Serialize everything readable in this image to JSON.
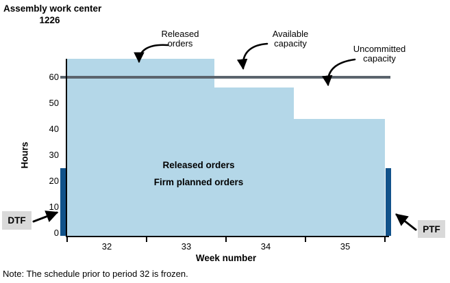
{
  "title": {
    "line1": "Assembly work center",
    "line2": "1226"
  },
  "note": "Note: The schedule prior to period 32 is frozen.",
  "fence_labels": {
    "dtf": "DTF",
    "ptf": "PTF"
  },
  "annotations": {
    "released": {
      "line1": "Released",
      "line2": "orders"
    },
    "available": {
      "line1": "Available",
      "line2": "capacity"
    },
    "uncommitted": {
      "line1": "Uncommitted",
      "line2": "capacity"
    }
  },
  "area_labels": {
    "line1": "Released orders",
    "line2": "Firm planned orders"
  },
  "colors": {
    "load_area": "#b4d7e8",
    "capacity_line": "#5b646d",
    "time_fence_bar": "#11528a",
    "fence_label_box": "#d9d9d9"
  },
  "chart_data": {
    "type": "area",
    "title": "Assembly work center 1226",
    "xlabel": "Week number",
    "ylabel": "Hours",
    "x_tick_labels": [
      "32",
      "33",
      "34",
      "35"
    ],
    "x_boundaries_weeks": [
      32,
      33,
      34,
      35,
      36
    ],
    "y_ticks": [
      0,
      10,
      20,
      30,
      40,
      50,
      60
    ],
    "ylim": [
      0,
      68
    ],
    "grid": false,
    "legend": false,
    "available_capacity_hours": 60,
    "segments": [
      {
        "from_week": 32.0,
        "to_week": 33.85,
        "hours": 67
      },
      {
        "from_week": 33.85,
        "to_week": 34.85,
        "hours": 56
      },
      {
        "from_week": 34.85,
        "to_week": 36.0,
        "hours": 44
      }
    ],
    "time_fences": [
      {
        "name": "DTF",
        "at_week": 32,
        "hours": 25
      },
      {
        "name": "PTF",
        "at_week": 36,
        "hours": 25
      }
    ]
  }
}
